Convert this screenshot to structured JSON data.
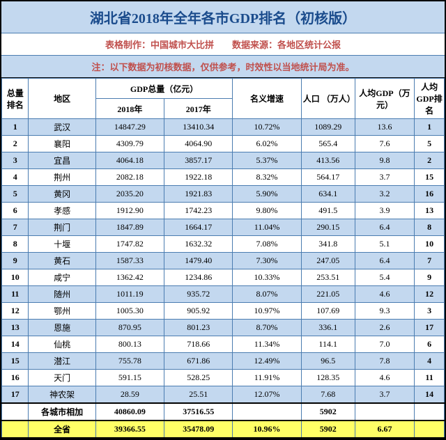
{
  "colors": {
    "header_bg": "#c3d8ef",
    "row_odd_bg": "#c3d8ef",
    "row_even_bg": "#ffffff",
    "total_bg": "#ffff66",
    "title_color": "#1a4b8c",
    "subtitle_color": "#c0504d",
    "border": "#4a7cb0"
  },
  "title": "湖北省2018年全年各市GDP排名（初核版）",
  "subtitle": "表格制作：中国城市大比拼　　数据来源：各地区统计公报",
  "note": "注：以下数据为初核数据，仅供参考，时效性以当地统计局为准。",
  "headers": {
    "rank": "总量排名",
    "region": "地区",
    "gdp_group": "GDP总量（亿元）",
    "gdp_2018": "2018年",
    "gdp_2017": "2017年",
    "growth": "名义增速",
    "pop": "人口 （万人）",
    "pcgdp": "人均GDP（万元）",
    "pcrank": "人均GDP排名"
  },
  "rows": [
    {
      "rank": "1",
      "region": "武汉",
      "gdp2018": "14847.29",
      "gdp2017": "13410.34",
      "growth": "10.72%",
      "pop": "1089.29",
      "pcgdp": "13.6",
      "pcrank": "1"
    },
    {
      "rank": "2",
      "region": "襄阳",
      "gdp2018": "4309.79",
      "gdp2017": "4064.90",
      "growth": "6.02%",
      "pop": "565.4",
      "pcgdp": "7.6",
      "pcrank": "5"
    },
    {
      "rank": "3",
      "region": "宜昌",
      "gdp2018": "4064.18",
      "gdp2017": "3857.17",
      "growth": "5.37%",
      "pop": "413.56",
      "pcgdp": "9.8",
      "pcrank": "2"
    },
    {
      "rank": "4",
      "region": "荆州",
      "gdp2018": "2082.18",
      "gdp2017": "1922.18",
      "growth": "8.32%",
      "pop": "564.17",
      "pcgdp": "3.7",
      "pcrank": "15"
    },
    {
      "rank": "5",
      "region": "黄冈",
      "gdp2018": "2035.20",
      "gdp2017": "1921.83",
      "growth": "5.90%",
      "pop": "634.1",
      "pcgdp": "3.2",
      "pcrank": "16"
    },
    {
      "rank": "6",
      "region": "孝感",
      "gdp2018": "1912.90",
      "gdp2017": "1742.23",
      "growth": "9.80%",
      "pop": "491.5",
      "pcgdp": "3.9",
      "pcrank": "13"
    },
    {
      "rank": "7",
      "region": "荆门",
      "gdp2018": "1847.89",
      "gdp2017": "1664.17",
      "growth": "11.04%",
      "pop": "290.15",
      "pcgdp": "6.4",
      "pcrank": "8"
    },
    {
      "rank": "8",
      "region": "十堰",
      "gdp2018": "1747.82",
      "gdp2017": "1632.32",
      "growth": "7.08%",
      "pop": "341.8",
      "pcgdp": "5.1",
      "pcrank": "10"
    },
    {
      "rank": "9",
      "region": "黄石",
      "gdp2018": "1587.33",
      "gdp2017": "1479.40",
      "growth": "7.30%",
      "pop": "247.05",
      "pcgdp": "6.4",
      "pcrank": "7"
    },
    {
      "rank": "10",
      "region": "咸宁",
      "gdp2018": "1362.42",
      "gdp2017": "1234.86",
      "growth": "10.33%",
      "pop": "253.51",
      "pcgdp": "5.4",
      "pcrank": "9"
    },
    {
      "rank": "11",
      "region": "随州",
      "gdp2018": "1011.19",
      "gdp2017": "935.72",
      "growth": "8.07%",
      "pop": "221.05",
      "pcgdp": "4.6",
      "pcrank": "12"
    },
    {
      "rank": "12",
      "region": "鄂州",
      "gdp2018": "1005.30",
      "gdp2017": "905.92",
      "growth": "10.97%",
      "pop": "107.69",
      "pcgdp": "9.3",
      "pcrank": "3"
    },
    {
      "rank": "13",
      "region": "恩施",
      "gdp2018": "870.95",
      "gdp2017": "801.23",
      "growth": "8.70%",
      "pop": "336.1",
      "pcgdp": "2.6",
      "pcrank": "17"
    },
    {
      "rank": "14",
      "region": "仙桃",
      "gdp2018": "800.13",
      "gdp2017": "718.66",
      "growth": "11.34%",
      "pop": "114.1",
      "pcgdp": "7.0",
      "pcrank": "6"
    },
    {
      "rank": "15",
      "region": "潜江",
      "gdp2018": "755.78",
      "gdp2017": "671.86",
      "growth": "12.49%",
      "pop": "96.5",
      "pcgdp": "7.8",
      "pcrank": "4"
    },
    {
      "rank": "16",
      "region": "天门",
      "gdp2018": "591.15",
      "gdp2017": "528.25",
      "growth": "11.91%",
      "pop": "128.35",
      "pcgdp": "4.6",
      "pcrank": "11"
    },
    {
      "rank": "17",
      "region": "神农架",
      "gdp2018": "28.59",
      "gdp2017": "25.51",
      "growth": "12.07%",
      "pop": "7.68",
      "pcgdp": "3.7",
      "pcrank": "14"
    }
  ],
  "sum": {
    "label": "各城市相加",
    "gdp2018": "40860.09",
    "gdp2017": "37516.55",
    "growth": "",
    "pop": "5902",
    "pcgdp": "",
    "pcrank": ""
  },
  "total": {
    "label": "全省",
    "gdp2018": "39366.55",
    "gdp2017": "35478.09",
    "growth": "10.96%",
    "pop": "5902",
    "pcgdp": "6.67",
    "pcrank": ""
  }
}
